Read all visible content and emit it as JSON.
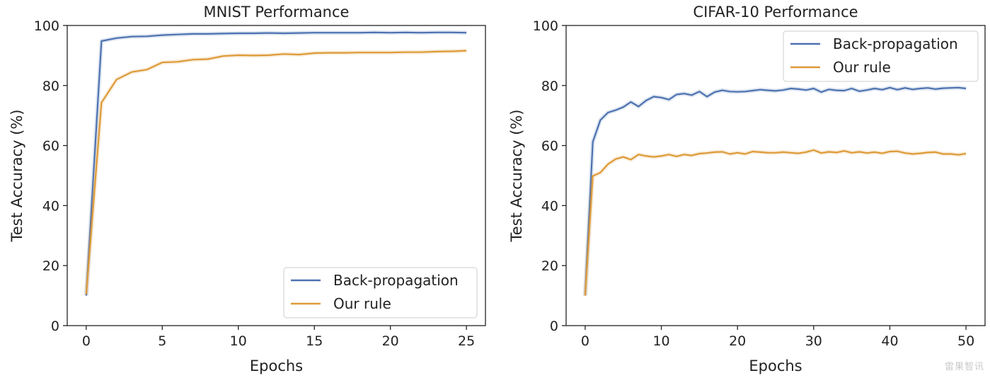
{
  "watermark": "雷果智讯",
  "colors": {
    "bp": "#4C72B0",
    "ours": "#DD9A38",
    "axis": "#222222",
    "text": "#222222"
  },
  "chart_data": [
    {
      "type": "line",
      "title": "MNIST Performance",
      "xlabel": "Epochs",
      "ylabel": "Test Accuracy (%)",
      "xlim": [
        -1.25,
        26.25
      ],
      "ylim": [
        0,
        100
      ],
      "xticks": [
        0,
        5,
        10,
        15,
        20,
        25
      ],
      "yticks": [
        0,
        20,
        40,
        60,
        80,
        100
      ],
      "legend": {
        "placement": "bottom-right"
      },
      "series": [
        {
          "name": "Back-propagation",
          "color": "#4C72B0",
          "x": [
            0,
            1,
            2,
            3,
            4,
            5,
            6,
            7,
            8,
            9,
            10,
            11,
            12,
            13,
            14,
            15,
            16,
            17,
            18,
            19,
            20,
            21,
            22,
            23,
            24,
            25
          ],
          "y": [
            10,
            94.8,
            95.8,
            96.3,
            96.4,
            96.8,
            97.0,
            97.2,
            97.2,
            97.3,
            97.4,
            97.4,
            97.5,
            97.4,
            97.5,
            97.6,
            97.6,
            97.6,
            97.6,
            97.7,
            97.6,
            97.7,
            97.6,
            97.7,
            97.7,
            97.6
          ]
        },
        {
          "name": "Our rule",
          "color": "#DD9A38",
          "x": [
            0,
            1,
            2,
            3,
            4,
            5,
            6,
            7,
            8,
            9,
            10,
            11,
            12,
            13,
            14,
            15,
            16,
            17,
            18,
            19,
            20,
            21,
            22,
            23,
            24,
            25
          ],
          "y": [
            10.5,
            74.3,
            82.0,
            84.5,
            85.3,
            87.7,
            87.9,
            88.6,
            88.8,
            89.8,
            90.1,
            90.0,
            90.1,
            90.5,
            90.3,
            90.8,
            90.9,
            90.9,
            91.0,
            91.0,
            91.0,
            91.1,
            91.1,
            91.3,
            91.4,
            91.6
          ]
        }
      ]
    },
    {
      "type": "line",
      "title": "CIFAR-10 Performance",
      "xlabel": "Epochs",
      "ylabel": "Test Accuracy (%)",
      "xlim": [
        -2.5,
        52.5
      ],
      "ylim": [
        0,
        100
      ],
      "xticks": [
        0,
        10,
        20,
        30,
        40,
        50
      ],
      "yticks": [
        0,
        20,
        40,
        60,
        80,
        100
      ],
      "legend": {
        "placement": "top-right"
      },
      "series": [
        {
          "name": "Back-propagation",
          "color": "#4C72B0",
          "x": [
            0,
            1,
            2,
            3,
            4,
            5,
            6,
            7,
            8,
            9,
            10,
            11,
            12,
            13,
            14,
            15,
            16,
            17,
            18,
            19,
            20,
            21,
            22,
            23,
            24,
            25,
            26,
            27,
            28,
            29,
            30,
            31,
            32,
            33,
            34,
            35,
            36,
            37,
            38,
            39,
            40,
            41,
            42,
            43,
            44,
            45,
            46,
            47,
            48,
            49,
            50
          ],
          "y": [
            10,
            61.2,
            68.5,
            71,
            71.8,
            72.8,
            74.5,
            73,
            75,
            76.3,
            76,
            75.3,
            77,
            77.3,
            76.8,
            78,
            76.3,
            77.8,
            78.4,
            78,
            77.9,
            78,
            78.3,
            78.6,
            78.4,
            78.2,
            78.5,
            79,
            78.8,
            78.5,
            79,
            77.8,
            78.7,
            78.4,
            78.3,
            79,
            78.1,
            78.5,
            79,
            78.6,
            79.3,
            78.6,
            79.2,
            78.7,
            79,
            79.2,
            78.8,
            79.1,
            79.2,
            79.3,
            79
          ]
        },
        {
          "name": "Our rule",
          "color": "#DD9A38",
          "x": [
            0,
            1,
            2,
            3,
            4,
            5,
            6,
            7,
            8,
            9,
            10,
            11,
            12,
            13,
            14,
            15,
            16,
            17,
            18,
            19,
            20,
            21,
            22,
            23,
            24,
            25,
            26,
            27,
            28,
            29,
            30,
            31,
            32,
            33,
            34,
            35,
            36,
            37,
            38,
            39,
            40,
            41,
            42,
            43,
            44,
            45,
            46,
            47,
            48,
            49,
            50
          ],
          "y": [
            10,
            49.8,
            51,
            53.8,
            55.5,
            56.2,
            55.3,
            57,
            56.5,
            56.2,
            56.5,
            57,
            56.4,
            57,
            56.7,
            57.3,
            57.5,
            57.8,
            57.9,
            57.2,
            57.6,
            57.2,
            58,
            57.8,
            57.6,
            57.6,
            57.8,
            57.6,
            57.4,
            57.8,
            58.5,
            57.5,
            57.9,
            57.7,
            58.2,
            57.6,
            57.9,
            57.5,
            57.8,
            57.4,
            58,
            58.1,
            57.5,
            57.2,
            57.4,
            57.7,
            57.8,
            57.2,
            57.2,
            56.9,
            57.3
          ]
        }
      ]
    }
  ]
}
